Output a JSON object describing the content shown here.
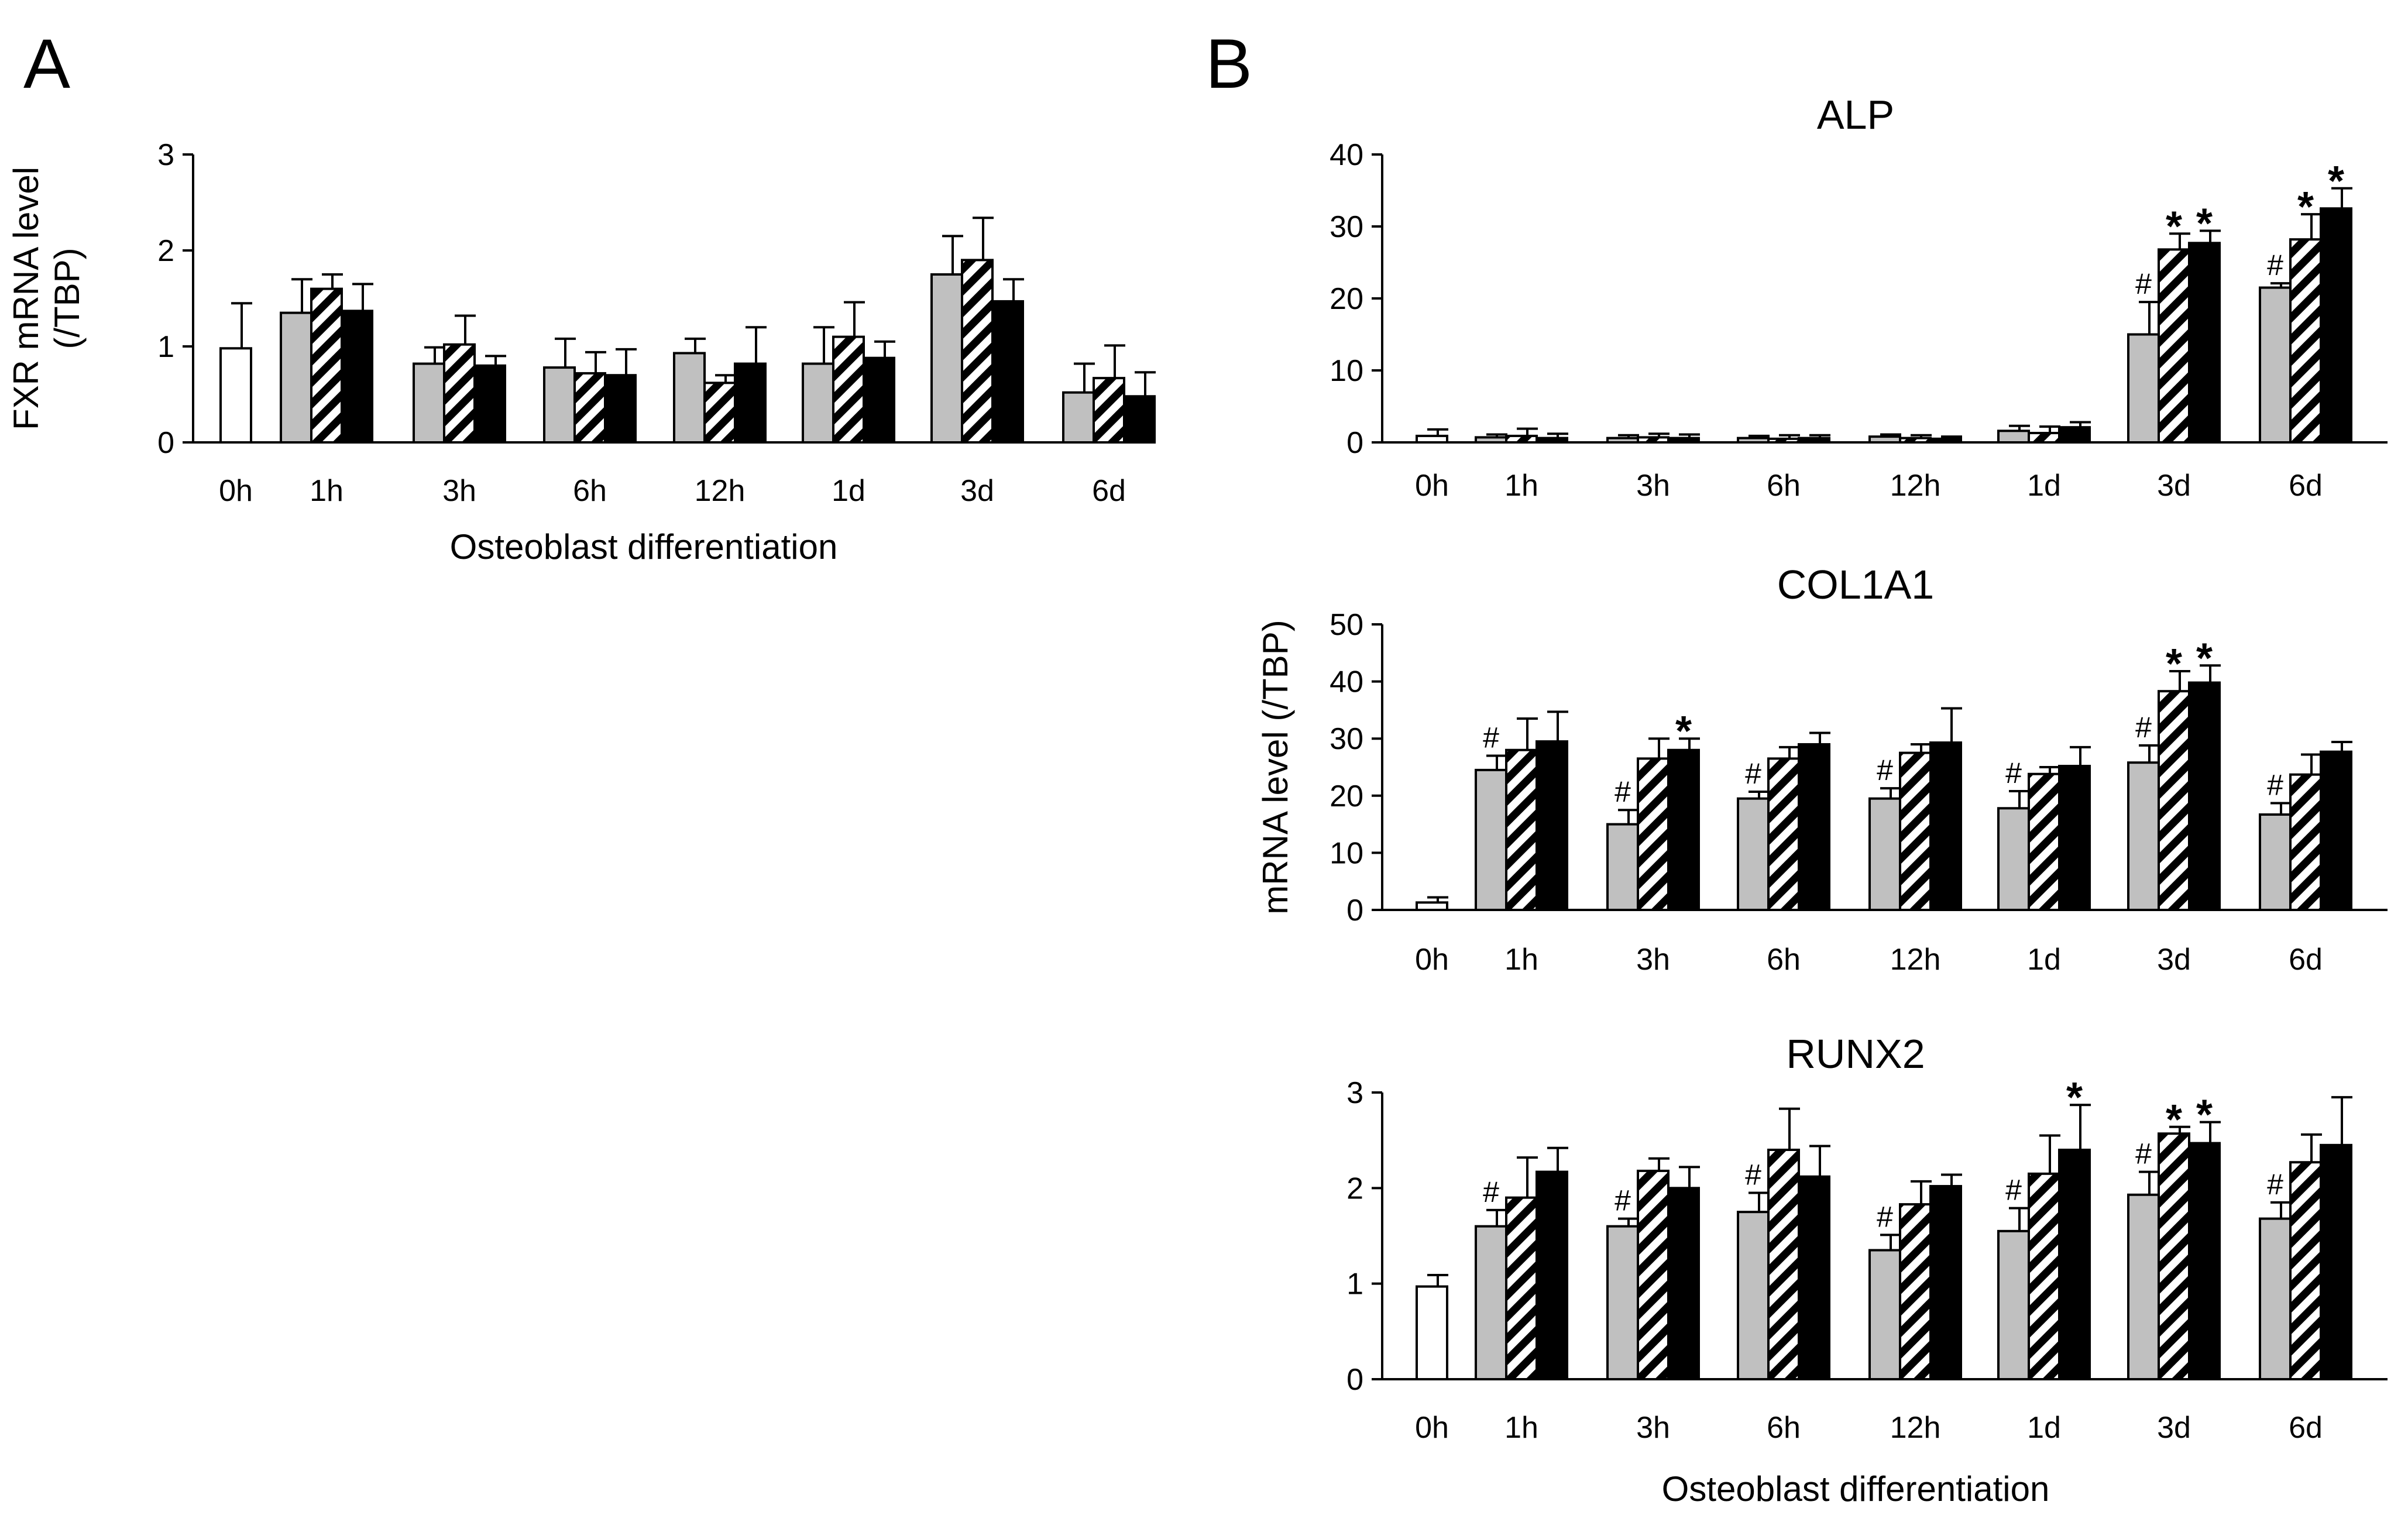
{
  "panels": {
    "a_label": "A",
    "b_label": "B"
  },
  "chart_data": [
    {
      "id": "fxr",
      "type": "bar",
      "title": "",
      "ylabel_lines": [
        "FXR mRNA level",
        "(/TBP)"
      ],
      "xlabel": "Osteoblast differentiation",
      "ylim": [
        0,
        3
      ],
      "yticks": [
        0,
        1,
        2,
        3
      ],
      "categories": [
        "0h",
        "1h",
        "3h",
        "6h",
        "12h",
        "1d",
        "3d",
        "6d"
      ],
      "series": [
        {
          "name": "gray",
          "values": [
            null,
            1.35,
            0.82,
            0.78,
            0.93,
            0.82,
            1.75,
            0.52
          ],
          "errors": [
            null,
            0.35,
            0.17,
            0.3,
            0.15,
            0.38,
            0.4,
            0.3
          ]
        },
        {
          "name": "hatched",
          "values": [
            null,
            1.6,
            1.02,
            0.72,
            0.62,
            1.1,
            1.9,
            0.67
          ],
          "errors": [
            null,
            0.15,
            0.3,
            0.22,
            0.08,
            0.36,
            0.44,
            0.34
          ]
        },
        {
          "name": "black",
          "values": [
            null,
            1.37,
            0.8,
            0.7,
            0.82,
            0.88,
            1.47,
            0.48
          ],
          "errors": [
            null,
            0.28,
            0.1,
            0.27,
            0.38,
            0.17,
            0.23,
            0.25
          ]
        }
      ],
      "control": {
        "category": "0h",
        "value": 0.98,
        "error": 0.47
      },
      "annotations": []
    },
    {
      "id": "alp",
      "type": "bar",
      "title": "ALP",
      "ylabel_lines": [],
      "xlabel": "",
      "ylim": [
        0,
        40
      ],
      "yticks": [
        0,
        10,
        20,
        30,
        40
      ],
      "categories": [
        "0h",
        "1h",
        "3h",
        "6h",
        "12h",
        "1d",
        "3d",
        "6d"
      ],
      "series": [
        {
          "name": "gray",
          "values": [
            null,
            0.7,
            0.6,
            0.6,
            0.8,
            1.6,
            15.0,
            21.5
          ],
          "errors": [
            null,
            0.4,
            0.4,
            0.3,
            0.3,
            0.7,
            4.5,
            0.6
          ]
        },
        {
          "name": "hatched",
          "values": [
            null,
            0.9,
            0.7,
            0.5,
            0.6,
            1.3,
            26.8,
            28.2
          ],
          "errors": [
            null,
            1.0,
            0.5,
            0.5,
            0.4,
            0.9,
            2.2,
            3.5
          ]
        },
        {
          "name": "black",
          "values": [
            null,
            0.6,
            0.6,
            0.6,
            0.5,
            2.1,
            27.7,
            32.5
          ],
          "errors": [
            null,
            0.6,
            0.5,
            0.4,
            0.3,
            0.7,
            1.7,
            2.8
          ]
        }
      ],
      "control": {
        "category": "0h",
        "value": 0.9,
        "error": 0.9
      },
      "annotations": [
        {
          "category": "3d",
          "series": 0,
          "text": "#"
        },
        {
          "category": "3d",
          "series": 1,
          "text": "*"
        },
        {
          "category": "3d",
          "series": 2,
          "text": "*"
        },
        {
          "category": "6d",
          "series": 0,
          "text": "#"
        },
        {
          "category": "6d",
          "series": 1,
          "text": "*"
        },
        {
          "category": "6d",
          "series": 2,
          "text": "*"
        }
      ]
    },
    {
      "id": "col1a1",
      "type": "bar",
      "title": "COL1A1",
      "ylabel_lines": [
        "mRNA level (/TBP)"
      ],
      "xlabel": "",
      "ylim": [
        0,
        50
      ],
      "yticks": [
        0,
        10,
        20,
        30,
        40,
        50
      ],
      "categories": [
        "0h",
        "1h",
        "3h",
        "6h",
        "12h",
        "1d",
        "3d",
        "6d"
      ],
      "series": [
        {
          "name": "gray",
          "values": [
            null,
            24.5,
            15.0,
            19.5,
            19.5,
            17.8,
            25.8,
            16.7
          ],
          "errors": [
            null,
            2.5,
            2.5,
            1.2,
            1.8,
            3.0,
            3.0,
            2.0
          ]
        },
        {
          "name": "hatched",
          "values": [
            null,
            28.0,
            26.5,
            26.5,
            27.5,
            23.8,
            38.3,
            23.7
          ],
          "errors": [
            null,
            5.5,
            3.5,
            2.0,
            1.5,
            1.2,
            3.5,
            3.5
          ]
        },
        {
          "name": "black",
          "values": [
            null,
            29.5,
            28.0,
            29.0,
            29.3,
            25.2,
            39.8,
            27.7
          ],
          "errors": [
            null,
            5.2,
            2.0,
            2.0,
            6.0,
            3.3,
            3.0,
            1.7
          ]
        }
      ],
      "control": {
        "category": "0h",
        "value": 1.3,
        "error": 0.9
      },
      "annotations": [
        {
          "category": "1h",
          "series": 0,
          "text": "#"
        },
        {
          "category": "3h",
          "series": 0,
          "text": "#"
        },
        {
          "category": "3h",
          "series": 2,
          "text": "*"
        },
        {
          "category": "6h",
          "series": 0,
          "text": "#"
        },
        {
          "category": "12h",
          "series": 0,
          "text": "#"
        },
        {
          "category": "1d",
          "series": 0,
          "text": "#"
        },
        {
          "category": "3d",
          "series": 0,
          "text": "#"
        },
        {
          "category": "3d",
          "series": 1,
          "text": "*"
        },
        {
          "category": "3d",
          "series": 2,
          "text": "*"
        },
        {
          "category": "6d",
          "series": 0,
          "text": "#"
        }
      ]
    },
    {
      "id": "runx2",
      "type": "bar",
      "title": "RUNX2",
      "ylabel_lines": [],
      "xlabel": "Osteoblast differentiation",
      "ylim": [
        0,
        3
      ],
      "yticks": [
        0,
        1,
        2,
        3
      ],
      "categories": [
        "0h",
        "1h",
        "3h",
        "6h",
        "12h",
        "1d",
        "3d",
        "6d"
      ],
      "series": [
        {
          "name": "gray",
          "values": [
            null,
            1.6,
            1.6,
            1.75,
            1.35,
            1.55,
            1.93,
            1.68
          ],
          "errors": [
            null,
            0.17,
            0.08,
            0.2,
            0.16,
            0.24,
            0.24,
            0.17
          ]
        },
        {
          "name": "hatched",
          "values": [
            null,
            1.9,
            2.18,
            2.4,
            1.83,
            2.15,
            2.57,
            2.27
          ],
          "errors": [
            null,
            0.42,
            0.13,
            0.43,
            0.24,
            0.4,
            0.07,
            0.29
          ]
        },
        {
          "name": "black",
          "values": [
            null,
            2.17,
            2.0,
            2.12,
            2.02,
            2.4,
            2.47,
            2.45
          ],
          "errors": [
            null,
            0.25,
            0.22,
            0.32,
            0.12,
            0.47,
            0.22,
            0.5
          ]
        }
      ],
      "control": {
        "category": "0h",
        "value": 0.97,
        "error": 0.12
      },
      "annotations": [
        {
          "category": "1h",
          "series": 0,
          "text": "#"
        },
        {
          "category": "3h",
          "series": 0,
          "text": "#"
        },
        {
          "category": "6h",
          "series": 0,
          "text": "#"
        },
        {
          "category": "12h",
          "series": 0,
          "text": "#"
        },
        {
          "category": "1d",
          "series": 0,
          "text": "#"
        },
        {
          "category": "1d",
          "series": 2,
          "text": "*"
        },
        {
          "category": "3d",
          "series": 0,
          "text": "#"
        },
        {
          "category": "3d",
          "series": 1,
          "text": "*"
        },
        {
          "category": "3d",
          "series": 2,
          "text": "*"
        },
        {
          "category": "6d",
          "series": 0,
          "text": "#"
        }
      ]
    }
  ],
  "colors": {
    "gray": "#c0c0c0",
    "black": "#000000",
    "white": "#ffffff",
    "hatch": "#000000"
  }
}
